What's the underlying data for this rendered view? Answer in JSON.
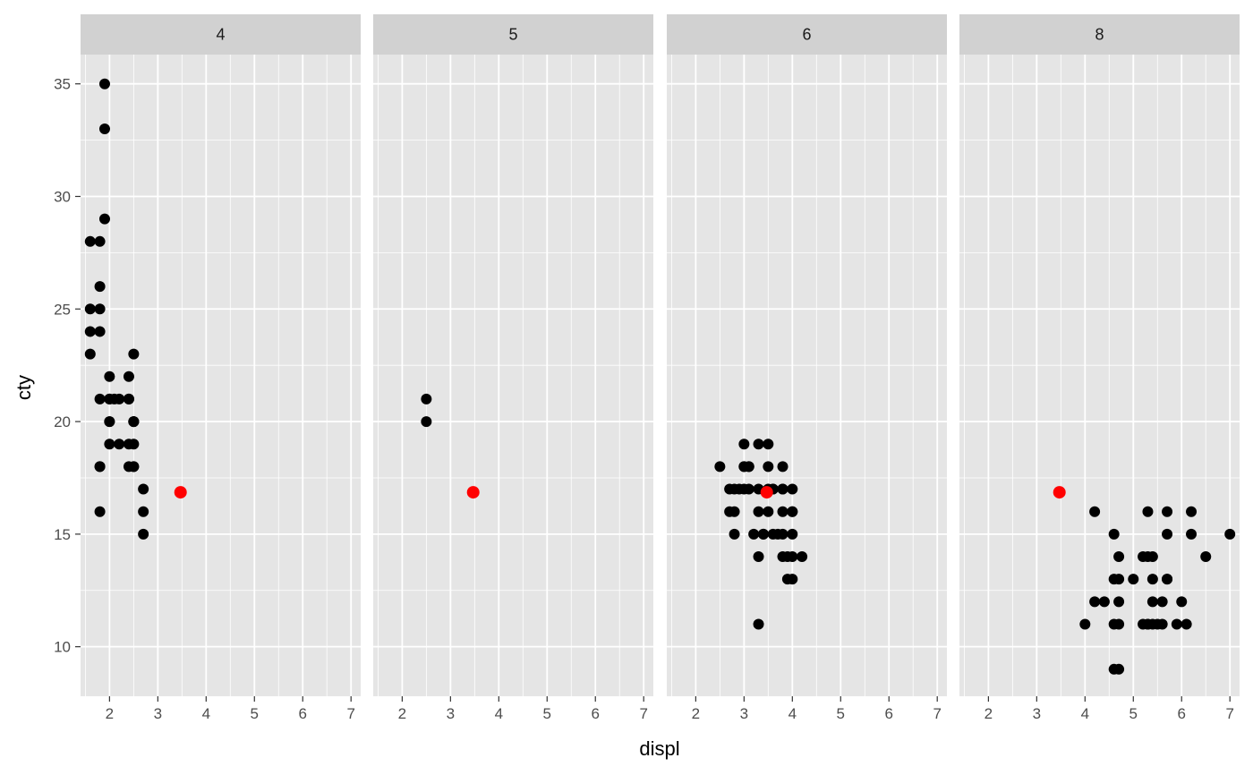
{
  "chart_data": {
    "type": "scatter",
    "title": "",
    "xlabel": "displ",
    "ylabel": "cty",
    "facet_variable": "",
    "xlim": [
      1.4,
      7.2
    ],
    "ylim": [
      7.8,
      36.3
    ],
    "x_ticks": [
      2,
      3,
      4,
      5,
      6,
      7
    ],
    "y_ticks": [
      10,
      15,
      20,
      25,
      30,
      35
    ],
    "grid": true,
    "legend": "none",
    "colors": {
      "panel_bg": "#e5e5e5",
      "strip_bg": "#d1d1d1",
      "grid_line": "#ffffff",
      "point": "#000000",
      "highlight_point": "#ff0000",
      "tick_text": "#4d4d4d"
    },
    "highlight": {
      "x": 3.47,
      "y": 16.86
    },
    "facets": [
      {
        "label": "4",
        "points": [
          [
            1.8,
            18
          ],
          [
            1.8,
            21
          ],
          [
            2.0,
            20
          ],
          [
            2.0,
            21
          ],
          [
            1.8,
            18
          ],
          [
            1.8,
            16
          ],
          [
            2.0,
            20
          ],
          [
            2.0,
            19
          ],
          [
            2.0,
            22
          ],
          [
            2.0,
            21
          ],
          [
            2.4,
            21
          ],
          [
            2.4,
            19
          ],
          [
            2.5,
            20
          ],
          [
            2.5,
            18
          ],
          [
            2.7,
            16
          ],
          [
            2.7,
            15
          ],
          [
            2.7,
            17
          ],
          [
            2.2,
            21
          ],
          [
            2.4,
            21
          ],
          [
            2.5,
            18
          ],
          [
            2.5,
            20
          ],
          [
            2.5,
            19
          ],
          [
            2.5,
            23
          ],
          [
            2.2,
            19
          ],
          [
            2.4,
            18
          ],
          [
            1.8,
            26
          ],
          [
            1.8,
            25
          ],
          [
            1.9,
            29
          ],
          [
            1.6,
            28
          ],
          [
            1.6,
            24
          ],
          [
            1.6,
            25
          ],
          [
            1.6,
            23
          ],
          [
            1.8,
            24
          ],
          [
            1.8,
            28
          ],
          [
            1.9,
            33
          ],
          [
            1.9,
            35
          ],
          [
            2.4,
            22
          ],
          [
            2.5,
            20
          ],
          [
            2.1,
            21
          ]
        ]
      },
      {
        "label": "5",
        "points": [
          [
            2.5,
            21
          ],
          [
            2.5,
            20
          ]
        ]
      },
      {
        "label": "6",
        "points": [
          [
            2.8,
            16
          ],
          [
            3.1,
            18
          ],
          [
            2.8,
            17
          ],
          [
            3.0,
            18
          ],
          [
            3.1,
            17
          ],
          [
            3.6,
            17
          ],
          [
            3.6,
            15
          ],
          [
            3.8,
            15
          ],
          [
            3.8,
            17
          ],
          [
            3.3,
            16
          ],
          [
            3.3,
            19
          ],
          [
            3.0,
            18
          ],
          [
            3.3,
            17
          ],
          [
            3.5,
            19
          ],
          [
            2.7,
            17
          ],
          [
            2.7,
            16
          ],
          [
            2.5,
            18
          ],
          [
            3.0,
            17
          ],
          [
            3.4,
            15
          ],
          [
            4.0,
            14
          ],
          [
            4.2,
            14
          ],
          [
            3.9,
            13
          ],
          [
            4.0,
            17
          ],
          [
            4.0,
            16
          ],
          [
            3.5,
            18
          ],
          [
            3.8,
            18
          ],
          [
            3.0,
            19
          ],
          [
            3.5,
            17
          ],
          [
            2.9,
            17
          ],
          [
            3.9,
            14
          ],
          [
            4.0,
            15
          ],
          [
            3.3,
            14
          ],
          [
            3.3,
            11
          ],
          [
            2.8,
            15
          ],
          [
            3.1,
            18
          ],
          [
            3.7,
            15
          ],
          [
            3.8,
            14
          ],
          [
            3.5,
            16
          ],
          [
            3.4,
            15
          ],
          [
            4.0,
            13
          ],
          [
            3.2,
            15
          ],
          [
            3.8,
            16
          ],
          [
            4.0,
            16
          ],
          [
            3.6,
            17
          ],
          [
            3.8,
            17
          ]
        ]
      },
      {
        "label": "8",
        "points": [
          [
            5.7,
            15
          ],
          [
            6.2,
            15
          ],
          [
            6.2,
            16
          ],
          [
            7.0,
            15
          ],
          [
            5.3,
            14
          ],
          [
            5.3,
            11
          ],
          [
            5.7,
            13
          ],
          [
            6.5,
            14
          ],
          [
            5.2,
            11
          ],
          [
            5.2,
            14
          ],
          [
            5.9,
            11
          ],
          [
            4.7,
            13
          ],
          [
            4.7,
            12
          ],
          [
            4.7,
            9
          ],
          [
            5.7,
            13
          ],
          [
            6.1,
            11
          ],
          [
            4.2,
            12
          ],
          [
            4.6,
            11
          ],
          [
            5.4,
            12
          ],
          [
            5.4,
            14
          ],
          [
            4.6,
            13
          ],
          [
            5.0,
            13
          ],
          [
            4.0,
            11
          ],
          [
            4.4,
            12
          ],
          [
            4.6,
            15
          ],
          [
            4.7,
            14
          ],
          [
            6.0,
            12
          ],
          [
            5.4,
            11
          ],
          [
            5.3,
            16
          ],
          [
            5.6,
            12
          ],
          [
            5.7,
            16
          ],
          [
            4.6,
            9
          ],
          [
            4.2,
            16
          ],
          [
            5.4,
            13
          ],
          [
            5.6,
            11
          ],
          [
            4.7,
            11
          ],
          [
            5.3,
            11
          ],
          [
            5.5,
            11
          ]
        ]
      }
    ]
  }
}
